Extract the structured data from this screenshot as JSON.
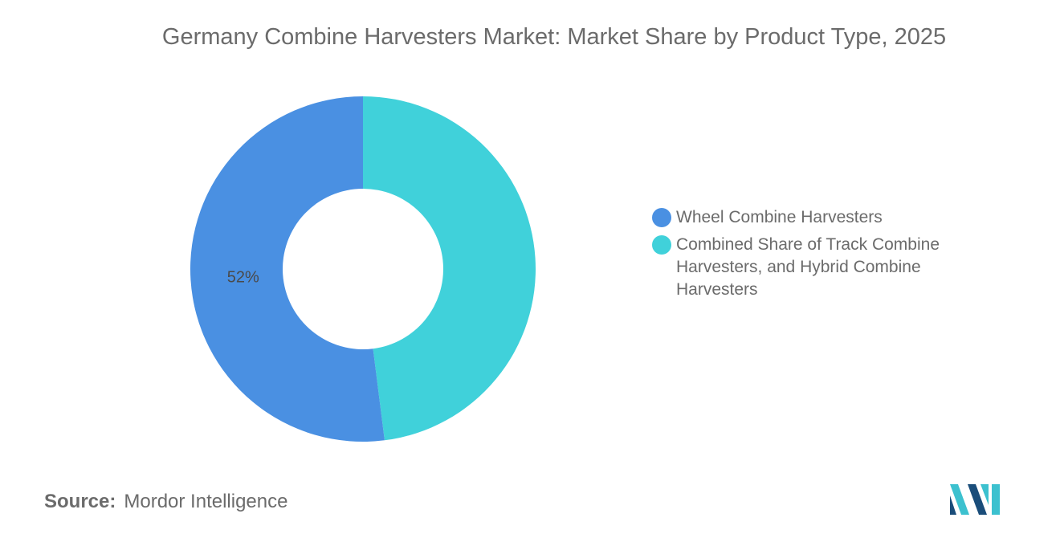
{
  "title": "Germany Combine Harvesters Market: Market Share by Product Type, 2025",
  "chart_data": {
    "type": "pie",
    "style": "donut",
    "title": "Germany Combine Harvesters Market: Market Share by Product Type, 2025",
    "categories": [
      "Wheel Combine Harvesters",
      "Combined Share of Track Combine Harvesters, and Hybrid Combine Harvesters"
    ],
    "values": [
      52,
      48
    ],
    "data_labels": [
      "52%",
      ""
    ],
    "colors": [
      "#4a90e2",
      "#40d1da"
    ],
    "legend_position": "right"
  },
  "source": {
    "label": "Source:",
    "text": "Mordor Intelligence"
  },
  "logo": {
    "icon": "mordor-intelligence-logo",
    "colors": [
      "#1a4d7a",
      "#3cc1cf"
    ]
  }
}
